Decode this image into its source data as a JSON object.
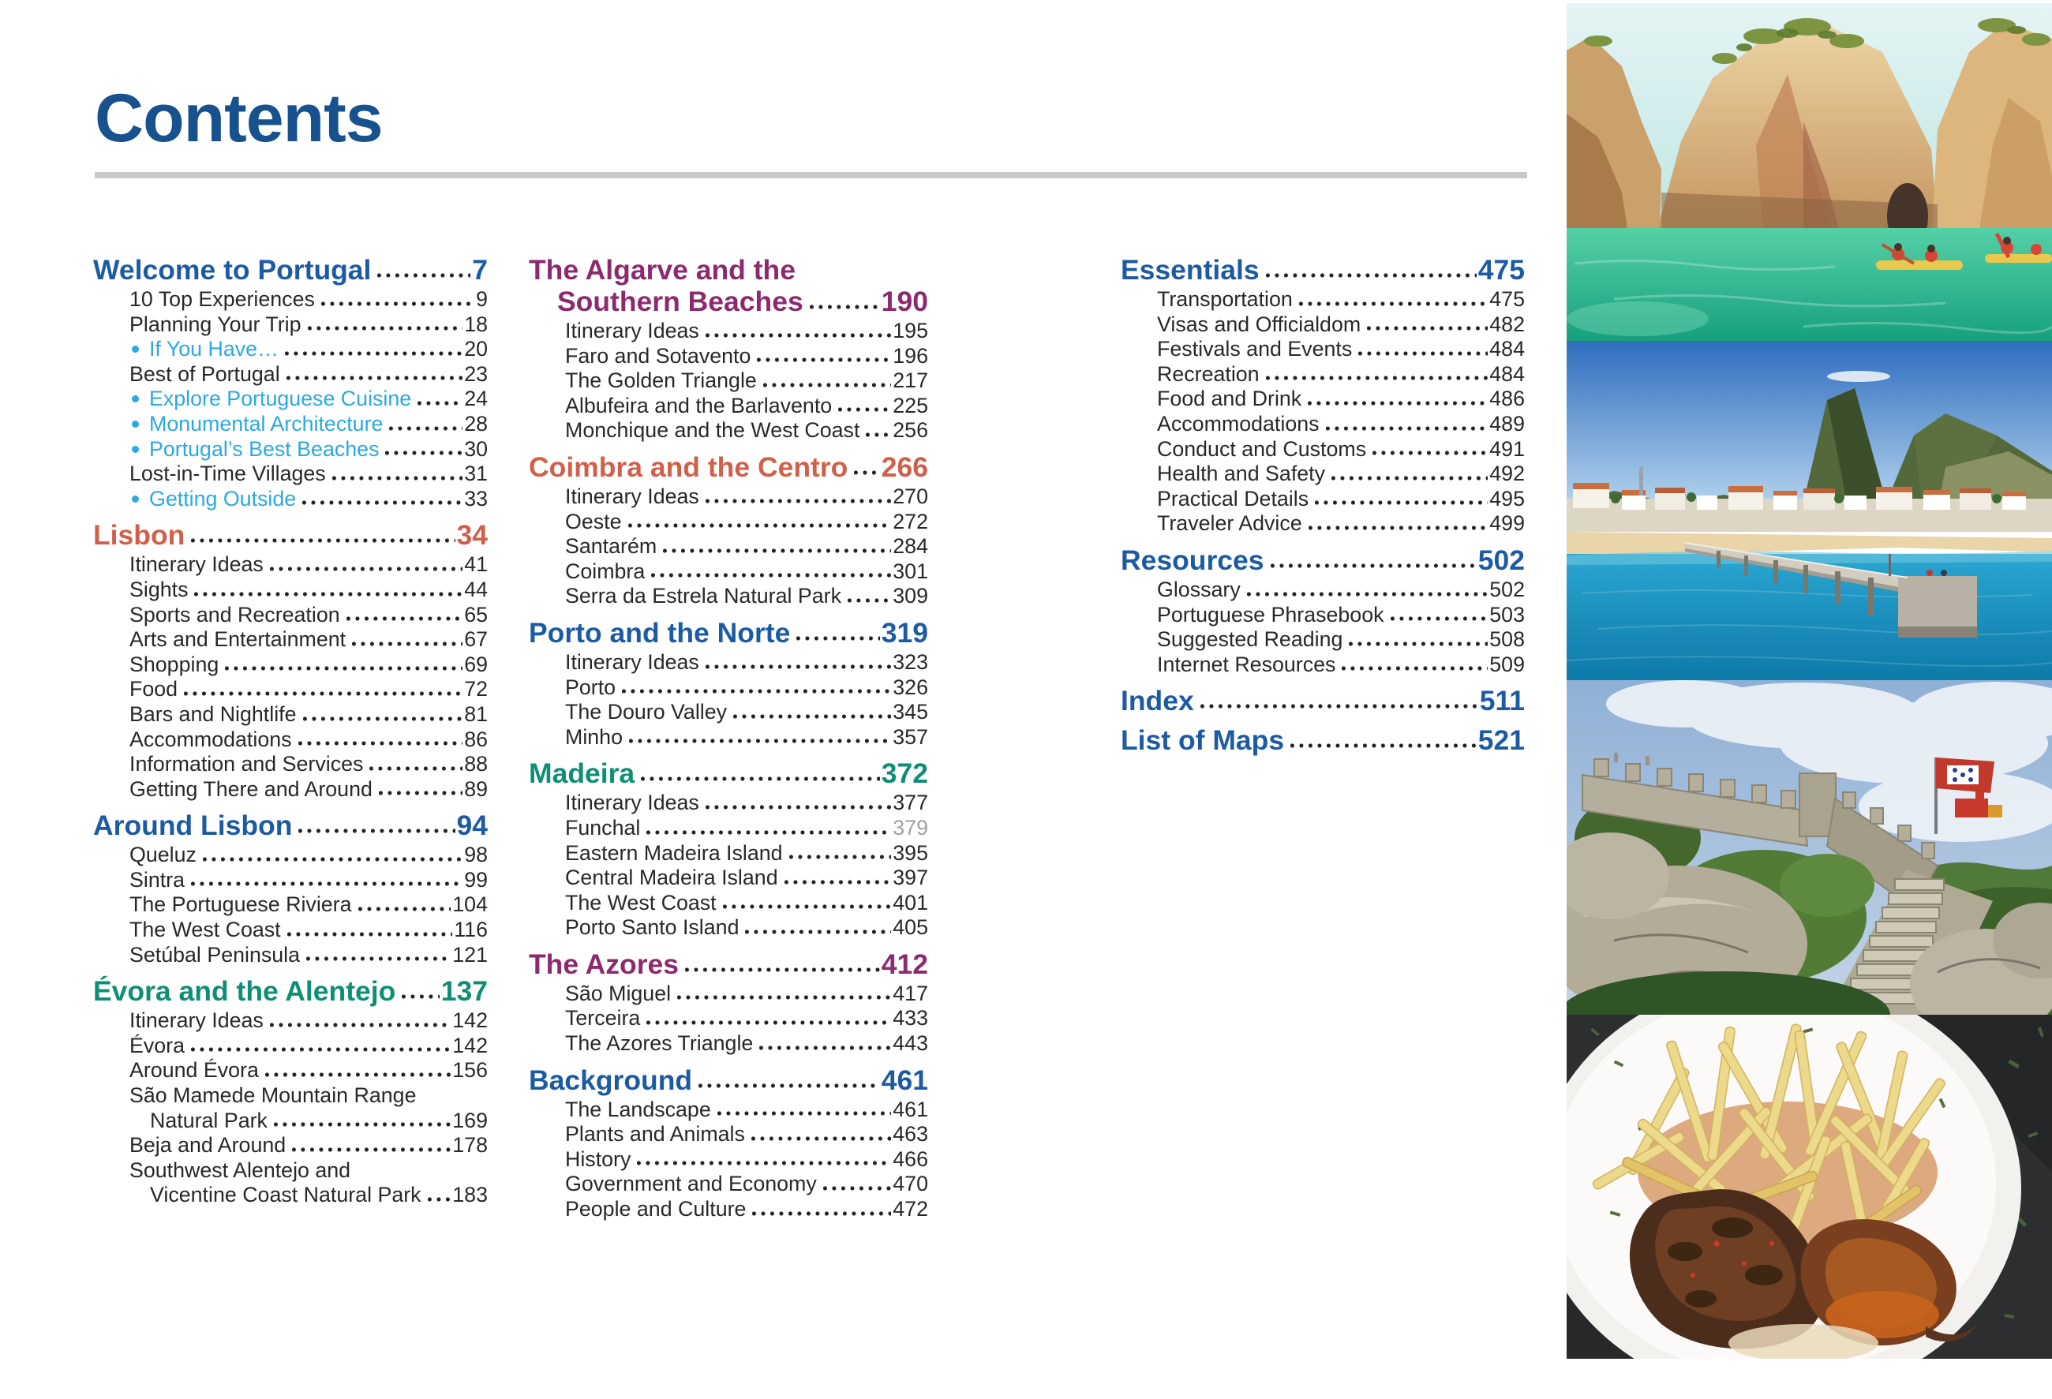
{
  "page": {
    "title": "Contents"
  },
  "colors": {
    "title": "#17518e",
    "rule": "#c8c9ca",
    "text": "#2b2728",
    "muted_page": "#9ea0a3",
    "bullet": "#2ba9e0",
    "dots": "#262223",
    "headings": {
      "blue": "#1c5ba4",
      "red": "#d0604a",
      "green": "#0e8f75",
      "purple": "#8d2a6e"
    }
  },
  "toc": {
    "columns": [
      {
        "sections": [
          {
            "id": "welcome",
            "color": "blue",
            "title": "Welcome to Portugal",
            "page": "7",
            "items": [
              {
                "label": "10 Top Experiences",
                "page": "9"
              },
              {
                "label": "Planning Your Trip",
                "page": "18"
              },
              {
                "label": "If You Have…",
                "page": "20",
                "bullet": true
              },
              {
                "label": "Best of Portugal",
                "page": "23"
              },
              {
                "label": "Explore Portuguese Cuisine",
                "page": "24",
                "bullet": true
              },
              {
                "label": "Monumental Architecture",
                "page": "28",
                "bullet": true
              },
              {
                "label": "Portugal’s Best Beaches",
                "page": "30",
                "bullet": true
              },
              {
                "label": "Lost-in-Time Villages",
                "page": "31"
              },
              {
                "label": "Getting Outside",
                "page": "33",
                "bullet": true
              }
            ]
          },
          {
            "id": "lisbon",
            "color": "red",
            "title": "Lisbon",
            "page": "34",
            "items": [
              {
                "label": "Itinerary Ideas",
                "page": "41"
              },
              {
                "label": "Sights",
                "page": "44"
              },
              {
                "label": "Sports and Recreation",
                "page": "65"
              },
              {
                "label": "Arts and Entertainment",
                "page": "67"
              },
              {
                "label": "Shopping",
                "page": "69"
              },
              {
                "label": "Food",
                "page": "72"
              },
              {
                "label": "Bars and Nightlife",
                "page": "81"
              },
              {
                "label": "Accommodations",
                "page": "86"
              },
              {
                "label": "Information and Services",
                "page": "88"
              },
              {
                "label": "Getting There and Around",
                "page": "89"
              }
            ]
          },
          {
            "id": "around-lisbon",
            "color": "blue",
            "title": "Around Lisbon",
            "page": "94",
            "items": [
              {
                "label": "Queluz",
                "page": "98"
              },
              {
                "label": "Sintra",
                "page": "99"
              },
              {
                "label": "The Portuguese Riviera",
                "page": "104"
              },
              {
                "label": "The West Coast",
                "page": "116"
              },
              {
                "label": "Setúbal Peninsula",
                "page": "121"
              }
            ]
          },
          {
            "id": "evora-alentejo",
            "color": "green",
            "title": "Évora and the Alentejo",
            "page": "137",
            "items": [
              {
                "label": "Itinerary Ideas",
                "page": "142"
              },
              {
                "label": "Évora",
                "page": "142"
              },
              {
                "label": "Around Évora",
                "page": "156"
              },
              {
                "label": "São Mamede Mountain Range",
                "label2": "Natural Park",
                "page": "169"
              },
              {
                "label": "Beja and Around",
                "page": "178"
              },
              {
                "label": "Southwest Alentejo and",
                "label2": "Vicentine Coast Natural Park",
                "page": "183"
              }
            ]
          }
        ]
      },
      {
        "sections": [
          {
            "id": "algarve",
            "color": "purple",
            "title_lines": [
              "The Algarve and the",
              "Southern Beaches"
            ],
            "title": "The Algarve and the Southern Beaches",
            "page": "190",
            "items": [
              {
                "label": "Itinerary Ideas",
                "page": "195"
              },
              {
                "label": "Faro and Sotavento",
                "page": "196"
              },
              {
                "label": "The Golden Triangle",
                "page": "217"
              },
              {
                "label": "Albufeira and the Barlavento",
                "page": "225"
              },
              {
                "label": "Monchique and the West Coast",
                "page": "256"
              }
            ]
          },
          {
            "id": "coimbra-centro",
            "color": "red",
            "title": "Coimbra and the Centro",
            "page": "266",
            "items": [
              {
                "label": "Itinerary Ideas",
                "page": "270"
              },
              {
                "label": "Oeste",
                "page": "272"
              },
              {
                "label": "Santarém",
                "page": "284"
              },
              {
                "label": "Coimbra",
                "page": "301"
              },
              {
                "label": "Serra da Estrela Natural Park",
                "page": "309"
              }
            ]
          },
          {
            "id": "porto-norte",
            "color": "blue",
            "title": "Porto and the Norte",
            "page": "319",
            "items": [
              {
                "label": "Itinerary Ideas",
                "page": "323"
              },
              {
                "label": "Porto",
                "page": "326"
              },
              {
                "label": "The Douro Valley",
                "page": "345"
              },
              {
                "label": "Minho",
                "page": "357"
              }
            ]
          },
          {
            "id": "madeira",
            "color": "green",
            "title": "Madeira",
            "page": "372",
            "items": [
              {
                "label": "Itinerary Ideas",
                "page": "377"
              },
              {
                "label": "Funchal",
                "page": "379",
                "muted": true
              },
              {
                "label": "Eastern Madeira Island",
                "page": "395"
              },
              {
                "label": "Central Madeira Island",
                "page": "397"
              },
              {
                "label": "The West Coast",
                "page": "401"
              },
              {
                "label": "Porto Santo Island",
                "page": "405"
              }
            ]
          },
          {
            "id": "azores",
            "color": "purple",
            "title": "The Azores",
            "page": "412",
            "items": [
              {
                "label": "São Miguel",
                "page": "417"
              },
              {
                "label": "Terceira",
                "page": "433"
              },
              {
                "label": "The Azores Triangle",
                "page": "443"
              }
            ]
          },
          {
            "id": "background",
            "color": "blue",
            "title": "Background",
            "page": "461",
            "items": [
              {
                "label": "The Landscape",
                "page": "461"
              },
              {
                "label": "Plants and Animals",
                "page": "463"
              },
              {
                "label": "History",
                "page": "466"
              },
              {
                "label": "Government and Economy",
                "page": "470"
              },
              {
                "label": "People and Culture",
                "page": "472"
              }
            ]
          }
        ]
      },
      {
        "sections": [
          {
            "id": "essentials",
            "color": "blue",
            "title": "Essentials",
            "page": "475",
            "items": [
              {
                "label": "Transportation",
                "page": "475"
              },
              {
                "label": "Visas and Officialdom",
                "page": "482"
              },
              {
                "label": "Festivals and Events",
                "page": "484"
              },
              {
                "label": "Recreation",
                "page": "484"
              },
              {
                "label": "Food and Drink",
                "page": "486"
              },
              {
                "label": "Accommodations",
                "page": "489"
              },
              {
                "label": "Conduct and Customs",
                "page": "491"
              },
              {
                "label": "Health and Safety",
                "page": "492"
              },
              {
                "label": "Practical Details",
                "page": "495"
              },
              {
                "label": "Traveler Advice",
                "page": "499"
              }
            ]
          },
          {
            "id": "resources",
            "color": "blue",
            "title": "Resources",
            "page": "502",
            "items": [
              {
                "label": "Glossary",
                "page": "502"
              },
              {
                "label": "Portuguese Phrasebook",
                "page": "503"
              },
              {
                "label": "Suggested Reading",
                "page": "508"
              },
              {
                "label": "Internet Resources",
                "page": "509"
              }
            ]
          },
          {
            "id": "index",
            "color": "blue",
            "title": "Index",
            "page": "511",
            "items": []
          },
          {
            "id": "list-of-maps",
            "color": "blue",
            "title": "List of Maps",
            "page": "521",
            "items": []
          }
        ]
      }
    ]
  },
  "photos": [
    {
      "name": "algarve-cliffs-kayakers",
      "alt": "Golden sea cliffs with kayakers paddling on turquoise water"
    },
    {
      "name": "porto-santo-pier",
      "alt": "Long pier over blue ocean with sandy beach, white town and green peaks"
    },
    {
      "name": "moorish-castle-sintra",
      "alt": "Stone castle wall and steps with Portuguese flag, boulders and Pena Palace on hill"
    },
    {
      "name": "piri-piri-chicken-fries",
      "alt": "Grilled piri-piri chicken and french fries on a white plate over dark slate"
    }
  ]
}
